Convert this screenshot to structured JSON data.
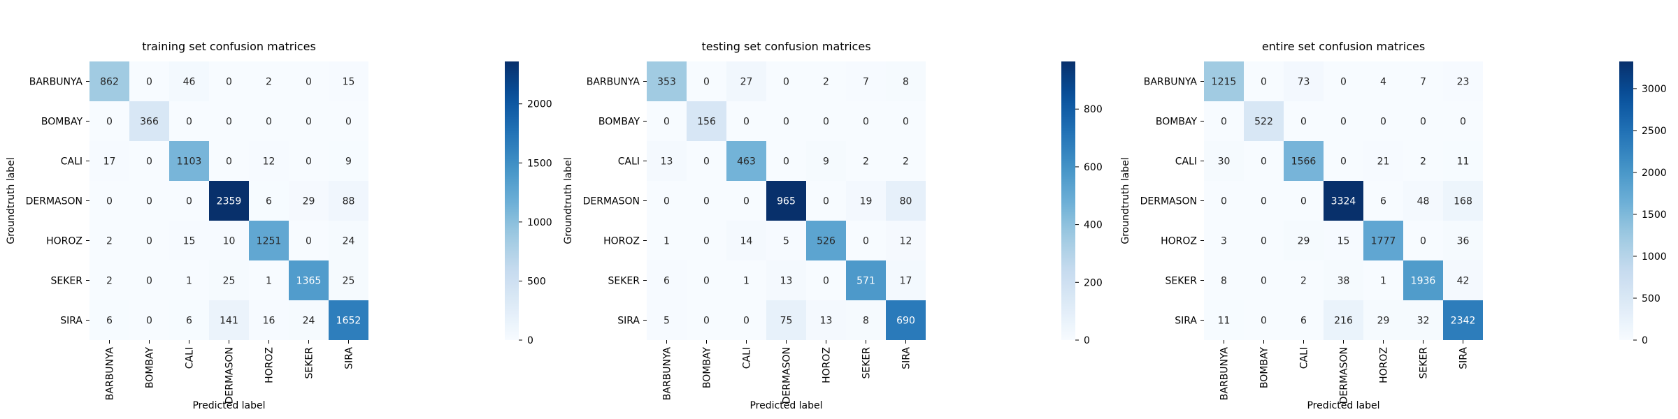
{
  "chart_data": [
    {
      "type": "heatmap",
      "title": "training set confusion matrices",
      "xlabel": "Predicted label",
      "ylabel": "Groundtruth label",
      "categories": [
        "BARBUNYA",
        "BOMBAY",
        "CALI",
        "DERMASON",
        "HOROZ",
        "SEKER",
        "SIRA"
      ],
      "values": [
        [
          862,
          0,
          46,
          0,
          2,
          0,
          15
        ],
        [
          0,
          366,
          0,
          0,
          0,
          0,
          0
        ],
        [
          17,
          0,
          1103,
          0,
          12,
          0,
          9
        ],
        [
          0,
          0,
          0,
          2359,
          6,
          29,
          88
        ],
        [
          2,
          0,
          15,
          10,
          1251,
          0,
          24
        ],
        [
          2,
          0,
          1,
          25,
          1,
          1365,
          25
        ],
        [
          6,
          0,
          6,
          141,
          16,
          24,
          1652
        ]
      ],
      "colorbar_ticks": [
        0,
        500,
        1000,
        1500,
        2000
      ],
      "colorbar_range": [
        0,
        2359
      ],
      "colormap": "Blues"
    },
    {
      "type": "heatmap",
      "title": "testing set confusion matrices",
      "xlabel": "Predicted label",
      "ylabel": "Groundtruth label",
      "categories": [
        "BARBUNYA",
        "BOMBAY",
        "CALI",
        "DERMASON",
        "HOROZ",
        "SEKER",
        "SIRA"
      ],
      "values": [
        [
          353,
          0,
          27,
          0,
          2,
          7,
          8
        ],
        [
          0,
          156,
          0,
          0,
          0,
          0,
          0
        ],
        [
          13,
          0,
          463,
          0,
          9,
          2,
          2
        ],
        [
          0,
          0,
          0,
          965,
          0,
          19,
          80
        ],
        [
          1,
          0,
          14,
          5,
          526,
          0,
          12
        ],
        [
          6,
          0,
          1,
          13,
          0,
          571,
          17
        ],
        [
          5,
          0,
          0,
          75,
          13,
          8,
          690
        ]
      ],
      "colorbar_ticks": [
        0,
        200,
        400,
        600,
        800
      ],
      "colorbar_range": [
        0,
        965
      ],
      "colormap": "Blues"
    },
    {
      "type": "heatmap",
      "title": "entire set confusion matrices",
      "xlabel": "Predicted label",
      "ylabel": "Groundtruth label",
      "categories": [
        "BARBUNYA",
        "BOMBAY",
        "CALI",
        "DERMASON",
        "HOROZ",
        "SEKER",
        "SIRA"
      ],
      "values": [
        [
          1215,
          0,
          73,
          0,
          4,
          7,
          23
        ],
        [
          0,
          522,
          0,
          0,
          0,
          0,
          0
        ],
        [
          30,
          0,
          1566,
          0,
          21,
          2,
          11
        ],
        [
          0,
          0,
          0,
          3324,
          6,
          48,
          168
        ],
        [
          3,
          0,
          29,
          15,
          1777,
          0,
          36
        ],
        [
          8,
          0,
          2,
          38,
          1,
          1936,
          42
        ],
        [
          11,
          0,
          6,
          216,
          29,
          32,
          2342
        ]
      ],
      "colorbar_ticks": [
        0,
        500,
        1000,
        1500,
        2000,
        2500,
        3000
      ],
      "colorbar_range": [
        0,
        3324
      ],
      "colormap": "Blues"
    }
  ]
}
